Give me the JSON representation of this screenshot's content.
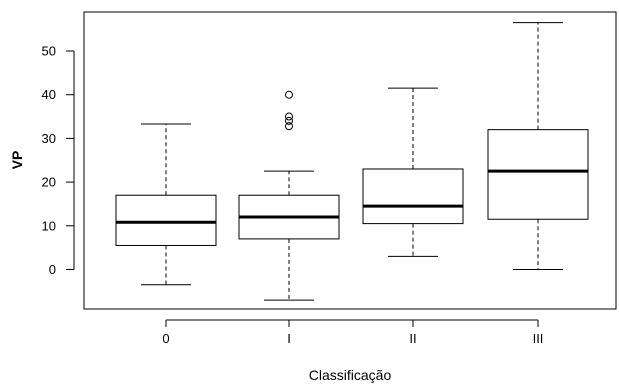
{
  "chart_data": {
    "type": "boxplot",
    "title": "",
    "xlabel": "Classificação",
    "ylabel": "VP",
    "categories": [
      "0",
      "I",
      "II",
      "III"
    ],
    "ylim": [
      -10,
      60
    ],
    "yticks": [
      0,
      10,
      20,
      30,
      40,
      50
    ],
    "grid": false,
    "legend": "none",
    "boxes": [
      {
        "category": "0",
        "whisker_low": -3.5,
        "q1": 5.5,
        "median": 10.8,
        "q3": 17.0,
        "whisker_high": 33.3,
        "outliers": []
      },
      {
        "category": "I",
        "whisker_low": -7.0,
        "q1": 7.0,
        "median": 12.0,
        "q3": 17.0,
        "whisker_high": 22.5,
        "outliers": [
          32.8,
          34.0,
          35.0,
          40.0
        ]
      },
      {
        "category": "II",
        "whisker_low": 3.0,
        "q1": 10.5,
        "median": 14.5,
        "q3": 23.0,
        "whisker_high": 41.5,
        "outliers": []
      },
      {
        "category": "III",
        "whisker_low": 0.0,
        "q1": 11.5,
        "median": 22.5,
        "q3": 32.0,
        "whisker_high": 56.5,
        "outliers": []
      }
    ]
  }
}
